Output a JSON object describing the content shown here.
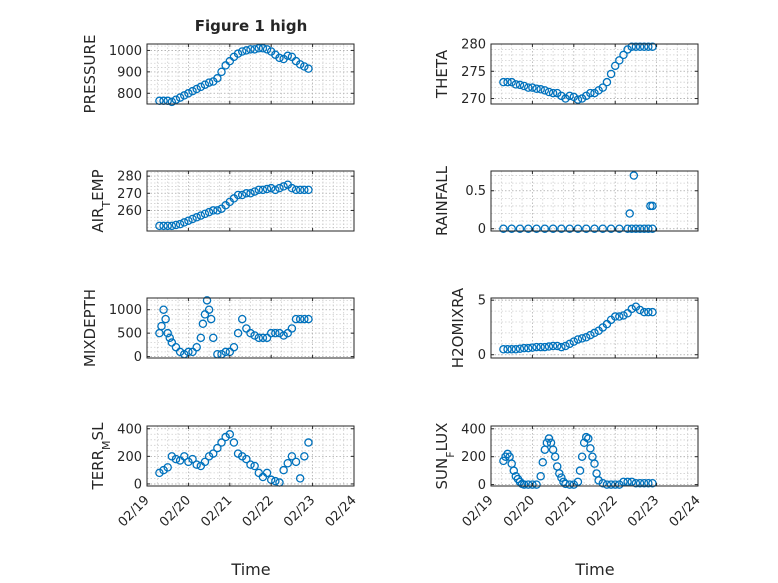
{
  "figure_title": "Figure 1 high",
  "xlabel": "Time",
  "marker_color": "#0072BD",
  "x_tick_labels": [
    "02/19",
    "02/20",
    "02/21",
    "02/22",
    "02/23",
    "02/24"
  ],
  "chart_data": [
    {
      "type": "scatter",
      "title": "Figure 1 high",
      "ylabel": "PRESSURE",
      "xlim": [
        0,
        5
      ],
      "ylim": [
        750,
        1030
      ],
      "yticks": [
        800,
        900,
        1000
      ],
      "ytick_labels": [
        "800",
        "900",
        "1000"
      ],
      "grid": true,
      "x": [
        0.3,
        0.4,
        0.5,
        0.6,
        0.7,
        0.8,
        0.9,
        1.0,
        1.1,
        1.2,
        1.3,
        1.4,
        1.5,
        1.6,
        1.7,
        1.8,
        1.9,
        2.0,
        2.1,
        2.2,
        2.3,
        2.4,
        2.5,
        2.6,
        2.7,
        2.8,
        2.9,
        3.0,
        3.1,
        3.2,
        3.3,
        3.4,
        3.5,
        3.6,
        3.7,
        3.8,
        3.9
      ],
      "y": [
        765,
        765,
        765,
        760,
        770,
        780,
        790,
        800,
        810,
        820,
        830,
        840,
        850,
        855,
        870,
        900,
        930,
        950,
        970,
        985,
        995,
        1000,
        1005,
        1005,
        1010,
        1010,
        1005,
        995,
        980,
        965,
        960,
        975,
        970,
        950,
        935,
        925,
        915
      ]
    },
    {
      "type": "scatter",
      "ylabel": "THETA",
      "xlim": [
        0,
        5
      ],
      "ylim": [
        269,
        280
      ],
      "yticks": [
        270,
        275,
        280
      ],
      "ytick_labels": [
        "270",
        "275",
        "280"
      ],
      "grid": true,
      "x": [
        0.3,
        0.4,
        0.5,
        0.6,
        0.7,
        0.8,
        0.9,
        1.0,
        1.1,
        1.2,
        1.3,
        1.4,
        1.5,
        1.6,
        1.7,
        1.8,
        1.9,
        2.0,
        2.1,
        2.2,
        2.3,
        2.4,
        2.5,
        2.6,
        2.7,
        2.8,
        2.9,
        3.0,
        3.1,
        3.2,
        3.3,
        3.4,
        3.5,
        3.6,
        3.7,
        3.8,
        3.9
      ],
      "y": [
        273,
        273,
        273,
        272.6,
        272.5,
        272.3,
        272,
        272,
        271.8,
        271.7,
        271.5,
        271.2,
        271,
        271,
        270.5,
        270,
        270.5,
        270.3,
        269.8,
        270,
        270.5,
        271,
        271,
        271.5,
        272,
        273,
        274.5,
        276,
        277,
        278,
        279,
        279.5,
        279.5,
        279.5,
        279.5,
        279.5,
        279.5
      ]
    },
    {
      "type": "scatter",
      "ylabel": "AIR_TEMP",
      "xlim": [
        0,
        5
      ],
      "ylim": [
        248,
        283
      ],
      "yticks": [
        260,
        270,
        280
      ],
      "ytick_labels": [
        "260",
        "270",
        "280"
      ],
      "grid": true,
      "x": [
        0.3,
        0.4,
        0.5,
        0.6,
        0.7,
        0.8,
        0.9,
        1.0,
        1.1,
        1.2,
        1.3,
        1.4,
        1.5,
        1.6,
        1.7,
        1.8,
        1.9,
        2.0,
        2.1,
        2.2,
        2.3,
        2.4,
        2.5,
        2.6,
        2.7,
        2.8,
        2.9,
        3.0,
        3.1,
        3.2,
        3.3,
        3.4,
        3.5,
        3.6,
        3.7,
        3.8,
        3.9
      ],
      "y": [
        251,
        251,
        251,
        251,
        251.5,
        252,
        253,
        254,
        255,
        256,
        257,
        258,
        259,
        260,
        260,
        261,
        263,
        265,
        267,
        269,
        269,
        270,
        270,
        271,
        272,
        272,
        272.5,
        273,
        272,
        273,
        274,
        275,
        273,
        272,
        272,
        272,
        272
      ]
    },
    {
      "type": "scatter",
      "ylabel": "RAINFALL",
      "xlim": [
        0,
        5
      ],
      "ylim": [
        -0.03,
        0.76
      ],
      "yticks": [
        0,
        0.5
      ],
      "ytick_labels": [
        "0",
        "0.5"
      ],
      "grid": true,
      "x": [
        0.3,
        0.5,
        0.7,
        0.9,
        1.1,
        1.3,
        1.5,
        1.7,
        1.9,
        2.1,
        2.3,
        2.5,
        2.7,
        2.9,
        3.1,
        3.3,
        3.4,
        3.5,
        3.6,
        3.7,
        3.8,
        3.9,
        3.35,
        3.45,
        3.85,
        3.9
      ],
      "y": [
        0,
        0,
        0,
        0,
        0,
        0,
        0,
        0,
        0,
        0,
        0,
        0,
        0,
        0,
        0,
        0,
        0,
        0,
        0,
        0,
        0,
        0,
        0.2,
        0.7,
        0.3,
        0.3
      ]
    },
    {
      "type": "scatter",
      "ylabel": "MIXDEPTH",
      "xlim": [
        0,
        5
      ],
      "ylim": [
        -30,
        1250
      ],
      "yticks": [
        0,
        500,
        1000
      ],
      "ytick_labels": [
        "0",
        "500",
        "1000"
      ],
      "grid": true,
      "x": [
        0.3,
        0.35,
        0.4,
        0.45,
        0.5,
        0.55,
        0.6,
        0.7,
        0.8,
        0.9,
        1.0,
        1.1,
        1.2,
        1.3,
        1.35,
        1.4,
        1.45,
        1.5,
        1.55,
        1.6,
        1.7,
        1.8,
        1.9,
        2.0,
        2.1,
        2.2,
        2.3,
        2.4,
        2.5,
        2.6,
        2.7,
        2.8,
        2.9,
        3.0,
        3.1,
        3.2,
        3.3,
        3.4,
        3.5,
        3.6,
        3.7,
        3.8,
        3.9
      ],
      "y": [
        500,
        650,
        1000,
        800,
        500,
        400,
        300,
        200,
        100,
        50,
        100,
        100,
        200,
        400,
        700,
        900,
        1200,
        1000,
        800,
        400,
        50,
        50,
        100,
        100,
        200,
        500,
        800,
        600,
        500,
        450,
        400,
        400,
        400,
        500,
        500,
        500,
        450,
        500,
        600,
        800,
        800,
        800,
        800
      ]
    },
    {
      "type": "scatter",
      "ylabel": "H2OMIXRA",
      "xlim": [
        0,
        5
      ],
      "ylim": [
        -0.3,
        5.2
      ],
      "yticks": [
        0,
        5
      ],
      "ytick_labels": [
        "0",
        "5"
      ],
      "grid": true,
      "x": [
        0.3,
        0.4,
        0.5,
        0.6,
        0.7,
        0.8,
        0.9,
        1.0,
        1.1,
        1.2,
        1.3,
        1.4,
        1.5,
        1.6,
        1.7,
        1.8,
        1.9,
        2.0,
        2.1,
        2.2,
        2.3,
        2.4,
        2.5,
        2.6,
        2.7,
        2.8,
        2.9,
        3.0,
        3.1,
        3.2,
        3.3,
        3.4,
        3.5,
        3.6,
        3.7,
        3.8,
        3.9
      ],
      "y": [
        0.5,
        0.5,
        0.5,
        0.5,
        0.55,
        0.6,
        0.6,
        0.65,
        0.7,
        0.7,
        0.7,
        0.75,
        0.8,
        0.8,
        0.7,
        0.8,
        1.0,
        1.2,
        1.4,
        1.5,
        1.6,
        1.8,
        2.0,
        2.2,
        2.5,
        2.8,
        3.2,
        3.5,
        3.5,
        3.6,
        3.8,
        4.2,
        4.4,
        4.1,
        3.9,
        3.9,
        3.9
      ]
    },
    {
      "type": "scatter",
      "ylabel": "TERR_MSL",
      "xlim": [
        0,
        5
      ],
      "ylim": [
        -15,
        420
      ],
      "yticks": [
        0,
        200,
        400
      ],
      "ytick_labels": [
        "0",
        "200",
        "400"
      ],
      "grid": true,
      "x": [
        0.3,
        0.4,
        0.5,
        0.6,
        0.7,
        0.8,
        0.9,
        1.0,
        1.1,
        1.2,
        1.3,
        1.4,
        1.5,
        1.6,
        1.7,
        1.8,
        1.9,
        2.0,
        2.1,
        2.2,
        2.3,
        2.4,
        2.5,
        2.6,
        2.7,
        2.8,
        2.9,
        3.0,
        3.1,
        3.2,
        3.3,
        3.4,
        3.5,
        3.6,
        3.7,
        3.8,
        3.9
      ],
      "y": [
        80,
        100,
        120,
        200,
        180,
        170,
        200,
        160,
        180,
        140,
        130,
        160,
        200,
        220,
        260,
        300,
        340,
        360,
        300,
        220,
        200,
        180,
        140,
        130,
        80,
        50,
        80,
        30,
        20,
        10,
        100,
        150,
        200,
        160,
        40,
        200,
        300
      ]
    },
    {
      "type": "scatter",
      "ylabel": "SUN_FLUX",
      "xlim": [
        0,
        5
      ],
      "ylim": [
        -10,
        420
      ],
      "yticks": [
        0,
        200,
        400
      ],
      "ytick_labels": [
        "0",
        "200",
        "400"
      ],
      "grid": true,
      "x": [
        0.3,
        0.35,
        0.4,
        0.45,
        0.5,
        0.55,
        0.6,
        0.65,
        0.7,
        0.75,
        0.8,
        0.9,
        1.0,
        1.1,
        1.2,
        1.25,
        1.3,
        1.35,
        1.4,
        1.45,
        1.5,
        1.55,
        1.6,
        1.65,
        1.7,
        1.75,
        1.8,
        1.9,
        2.0,
        2.1,
        2.15,
        2.2,
        2.25,
        2.3,
        2.35,
        2.4,
        2.45,
        2.5,
        2.55,
        2.6,
        2.7,
        2.8,
        2.9,
        3.0,
        3.1,
        3.2,
        3.3,
        3.4,
        3.5,
        3.6,
        3.7,
        3.8,
        3.9
      ],
      "y": [
        170,
        200,
        220,
        200,
        150,
        100,
        60,
        40,
        20,
        5,
        0,
        0,
        0,
        0,
        60,
        160,
        250,
        300,
        330,
        300,
        250,
        200,
        130,
        80,
        50,
        20,
        5,
        0,
        0,
        20,
        100,
        200,
        300,
        340,
        330,
        260,
        200,
        150,
        80,
        30,
        10,
        0,
        0,
        0,
        0,
        20,
        20,
        20,
        10,
        10,
        10,
        10,
        10
      ]
    }
  ]
}
